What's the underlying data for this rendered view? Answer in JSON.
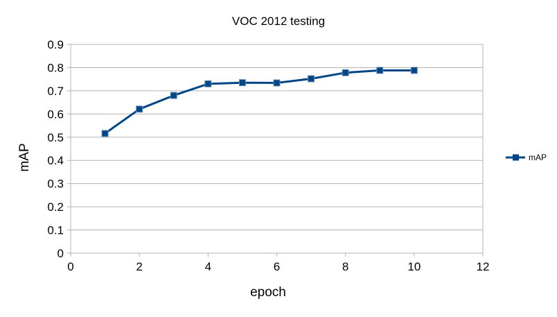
{
  "chart_data": {
    "type": "line",
    "title": "VOC 2012 testing",
    "xlabel": "epoch",
    "ylabel": "mAP",
    "xlim": [
      0,
      12
    ],
    "ylim": [
      0,
      0.9
    ],
    "x_ticks": [
      0,
      2,
      4,
      6,
      8,
      10,
      12
    ],
    "y_ticks": [
      0,
      0.1,
      0.2,
      0.3,
      0.4,
      0.5,
      0.6,
      0.7,
      0.8,
      0.9
    ],
    "x_tick_labels": [
      "0",
      "2",
      "4",
      "6",
      "8",
      "10",
      "12"
    ],
    "y_tick_labels": [
      "0",
      "0.1",
      "0.2",
      "0.3",
      "0.4",
      "0.5",
      "0.6",
      "0.7",
      "0.8",
      "0.9"
    ],
    "grid": "horizontal",
    "legend": "right",
    "series": [
      {
        "name": "mAP",
        "color": "#004586",
        "marker": "square",
        "x": [
          1,
          2,
          3,
          4,
          5,
          6,
          7,
          8,
          9,
          10
        ],
        "y": [
          0.516,
          0.621,
          0.68,
          0.73,
          0.735,
          0.734,
          0.752,
          0.778,
          0.788,
          0.788
        ]
      }
    ]
  }
}
